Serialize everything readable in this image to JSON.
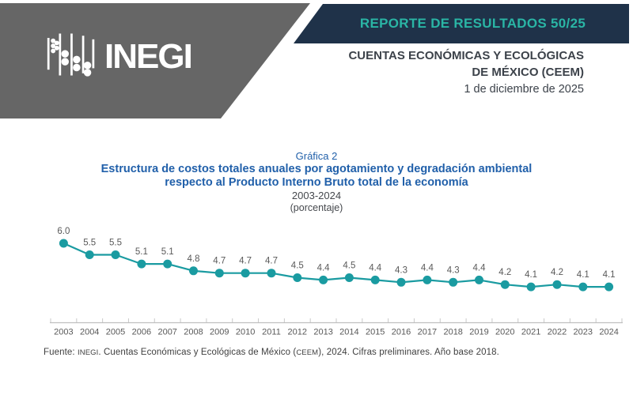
{
  "header": {
    "logo_text": "INEGI",
    "banner_title": "REPORTE DE RESULTADOS 50/25",
    "org_line1": "CUENTAS ECONÓMICAS Y ECOLÓGICAS",
    "org_line2": "DE MÉXICO (CEEM)",
    "date": "1 de diciembre de 2025"
  },
  "title": {
    "label": "Gráfica 2",
    "line1": "Estructura de costos totales anuales por agotamiento y degradación ambiental",
    "line2": "respecto al Producto Interno Bruto total de la economía",
    "period": "2003-2024",
    "unit": "(porcentaje)"
  },
  "chart_data": {
    "type": "line",
    "title": "Estructura de costos totales anuales por agotamiento y degradación ambiental respecto al Producto Interno Bruto total de la economía",
    "subtitle": "2003-2024 (porcentaje)",
    "categories": [
      2003,
      2004,
      2005,
      2006,
      2007,
      2008,
      2009,
      2010,
      2011,
      2012,
      2013,
      2014,
      2015,
      2016,
      2017,
      2018,
      2019,
      2020,
      2021,
      2022,
      2023,
      2024
    ],
    "values": [
      6.0,
      5.5,
      5.5,
      5.1,
      5.1,
      4.8,
      4.7,
      4.7,
      4.7,
      4.5,
      4.4,
      4.5,
      4.4,
      4.3,
      4.4,
      4.3,
      4.4,
      4.2,
      4.1,
      4.2,
      4.1,
      4.1
    ],
    "xlabel": "",
    "ylabel": "",
    "ylim": [
      3.5,
      6.5
    ],
    "grid": false,
    "legend": "none",
    "data_labels": true,
    "line_color": "#1A9BA1",
    "label_color": "#595959",
    "axis_color": "#BFBFBF"
  },
  "footer": {
    "fuente": "Fuente: ",
    "inegi": "INEGI",
    "mid": ". Cuentas Económicas y Ecológicas de México (",
    "ceem": "CEEM",
    "tail": "), 2024. Cifras preliminares. Año base 2018."
  },
  "colors": {
    "banner_gray": "#666666",
    "banner_navy": "#1F3249",
    "accent_teal": "#2AB5A5",
    "title_blue": "#2160AA",
    "line_teal": "#1A9BA1"
  }
}
